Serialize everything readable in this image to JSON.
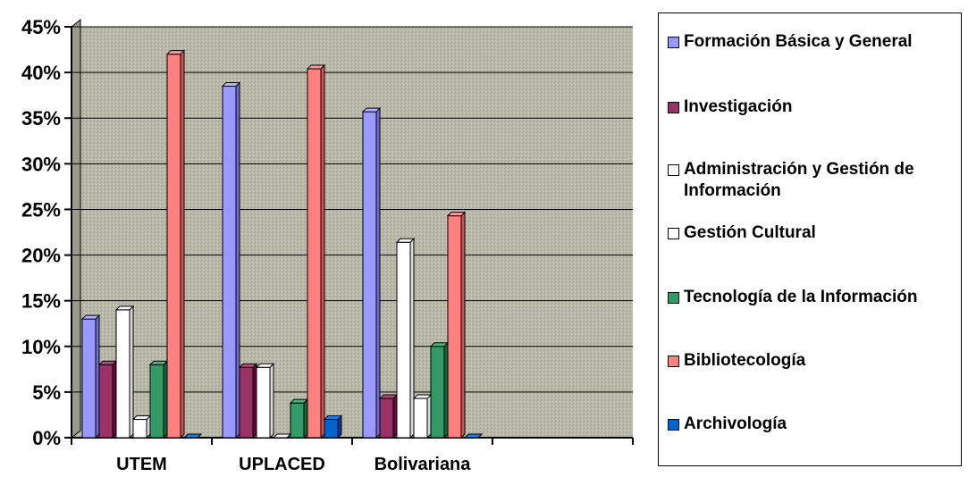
{
  "chart_data": {
    "type": "bar",
    "title": "",
    "xlabel": "",
    "ylabel": "",
    "categories": [
      "UTEM",
      "UPLACED",
      "Bolivariana"
    ],
    "ylim": [
      0,
      45
    ],
    "yticks": [
      "0%",
      "5%",
      "10%",
      "15%",
      "20%",
      "25%",
      "30%",
      "35%",
      "40%",
      "45%"
    ],
    "grid": true,
    "legend_position": "right",
    "series": [
      {
        "name": "Formación Básica y General",
        "color": "#9999ff",
        "values": [
          13,
          38.5,
          35.7
        ]
      },
      {
        "name": "Investigación",
        "color": "#993366",
        "values": [
          8,
          7.7,
          4.3
        ]
      },
      {
        "name": "Administración y Gestión de Información",
        "color": "#ffffff",
        "values": [
          14,
          7.7,
          21.4
        ]
      },
      {
        "name": "Gestión Cultural",
        "color": "#ffffff",
        "values": [
          2,
          0,
          4.3
        ]
      },
      {
        "name": "Tecnología de la Información",
        "color": "#339966",
        "values": [
          8,
          3.8,
          10
        ]
      },
      {
        "name": "Bibliotecología",
        "color": "#ff8080",
        "values": [
          42,
          40.4,
          24.3
        ]
      },
      {
        "name": "Archivología",
        "color": "#0066cc",
        "values": [
          0,
          2,
          0
        ]
      }
    ]
  }
}
